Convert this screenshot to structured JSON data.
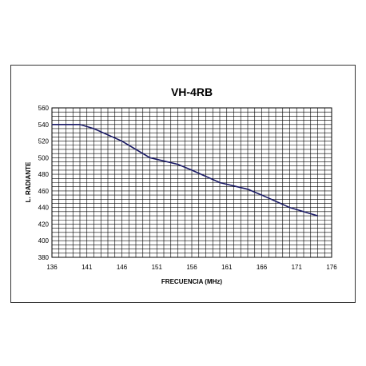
{
  "chart_data": {
    "type": "line",
    "title": "VH-4RB",
    "xlabel": "FRECUENCIA  (MHz)",
    "ylabel": "L. RADIANTE",
    "xlim": [
      136,
      176
    ],
    "ylim": [
      380,
      560
    ],
    "x_ticks": [
      136,
      141,
      146,
      151,
      156,
      161,
      166,
      171,
      176
    ],
    "y_ticks": [
      380,
      400,
      420,
      440,
      460,
      480,
      500,
      520,
      540,
      560
    ],
    "grid": true,
    "legend": "none",
    "series": [
      {
        "x": [
          136,
          140,
          142,
          146,
          150,
          154,
          156,
          160,
          164,
          166,
          170,
          174
        ],
        "y": [
          540,
          540,
          535,
          520,
          500,
          492,
          485,
          470,
          462,
          455,
          440,
          430
        ]
      }
    ],
    "colors": {
      "line": "#1a1a66",
      "grid": "#000000",
      "frame": "#333333"
    }
  }
}
